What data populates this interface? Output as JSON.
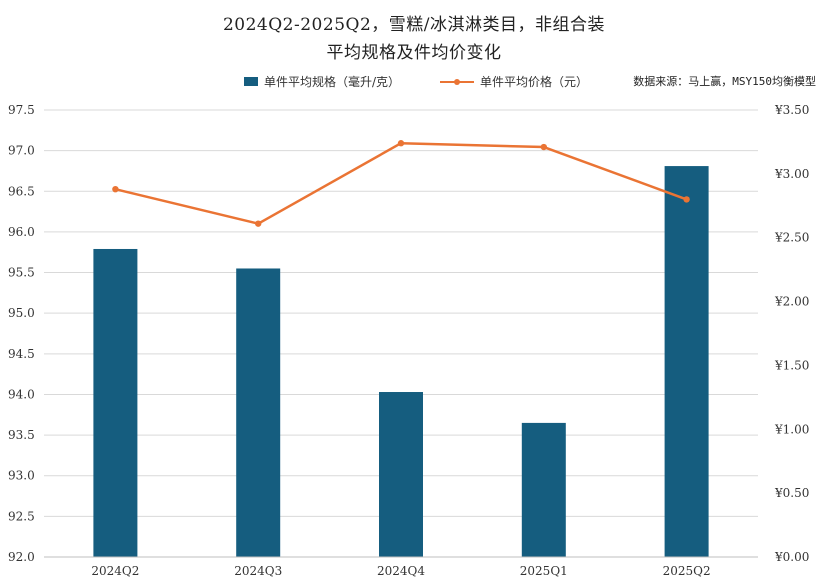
{
  "title_line1": "2024Q2-2025Q2，雪糕/冰淇淋类目，非组合装",
  "title_line2": "平均规格及件均价变化",
  "source": "数据来源：马上赢，MSY150均衡模型",
  "chart_data": {
    "type": "bar",
    "categories": [
      "2024Q2",
      "2024Q3",
      "2024Q4",
      "2025Q1",
      "2025Q2"
    ],
    "series": [
      {
        "name": "单件平均规格（毫升/克）",
        "type": "bar",
        "axis": "left",
        "color": "#155d7f",
        "values": [
          95.79,
          95.55,
          94.03,
          93.65,
          96.81
        ]
      },
      {
        "name": "单件平均价格（元）",
        "type": "line",
        "axis": "right",
        "color": "#ea7434",
        "values": [
          2.88,
          2.61,
          3.24,
          3.21,
          2.8
        ]
      }
    ],
    "left_axis": {
      "min": 92.0,
      "max": 97.5,
      "step": 0.5,
      "tick_labels": [
        "92.0",
        "92.5",
        "93.0",
        "93.5",
        "94.0",
        "94.5",
        "95.0",
        "95.5",
        "96.0",
        "96.5",
        "97.0",
        "97.5"
      ]
    },
    "right_axis": {
      "min": 0,
      "max": 3.5,
      "step": 0.5,
      "tick_labels": [
        "¥0.00",
        "¥0.50",
        "¥1.00",
        "¥1.50",
        "¥2.00",
        "¥2.50",
        "¥3.00",
        "¥3.50"
      ]
    },
    "grid": true,
    "legend_position": "top"
  }
}
